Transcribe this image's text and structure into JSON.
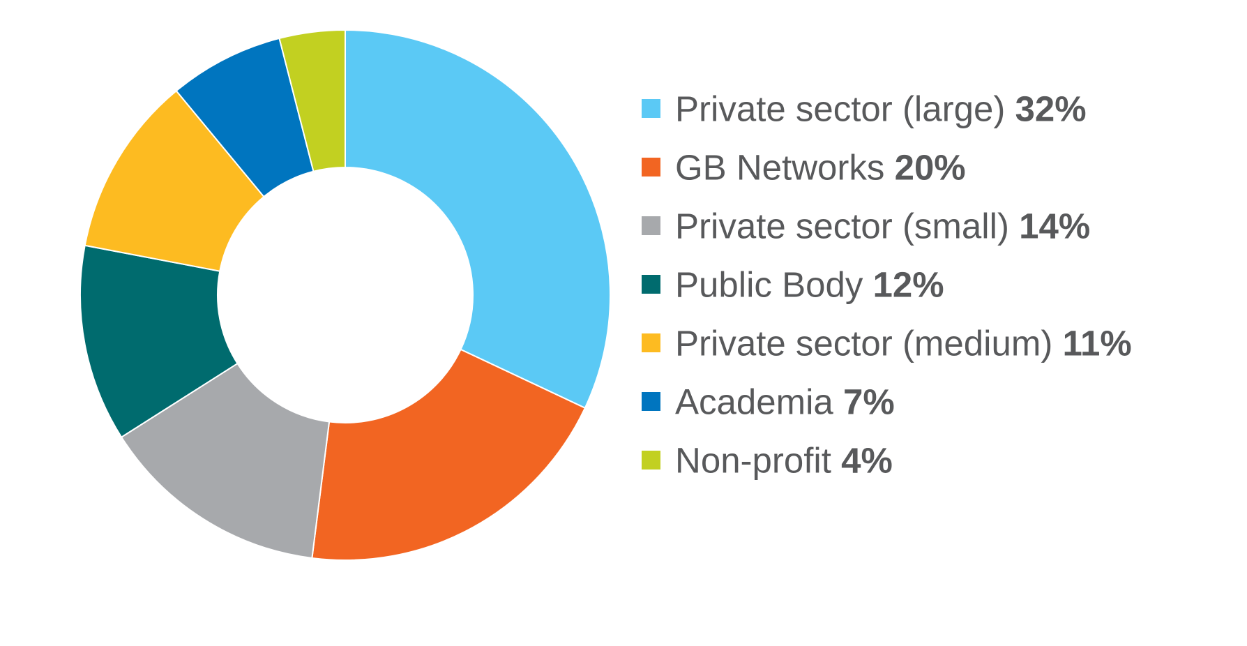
{
  "chart_data": {
    "type": "pie",
    "variant": "donut",
    "legend_position": "right",
    "slices": [
      {
        "label": "Private sector (large)",
        "value": 32,
        "value_label": "32%",
        "color": "#5bc9f5"
      },
      {
        "label": "GB Networks",
        "value": 20,
        "value_label": "20%",
        "color": "#f26522"
      },
      {
        "label": "Private sector (small)",
        "value": 14,
        "value_label": "14%",
        "color": "#a7a9ac"
      },
      {
        "label": "Public Body",
        "value": 12,
        "value_label": "12%",
        "color": "#006b6e"
      },
      {
        "label": "Private sector (medium)",
        "value": 11,
        "value_label": "11%",
        "color": "#fdbb21"
      },
      {
        "label": "Academia",
        "value": 7,
        "value_label": "7%",
        "color": "#0075bf"
      },
      {
        "label": "Non-profit",
        "value": 4,
        "value_label": "4%",
        "color": "#c2d021"
      }
    ]
  }
}
